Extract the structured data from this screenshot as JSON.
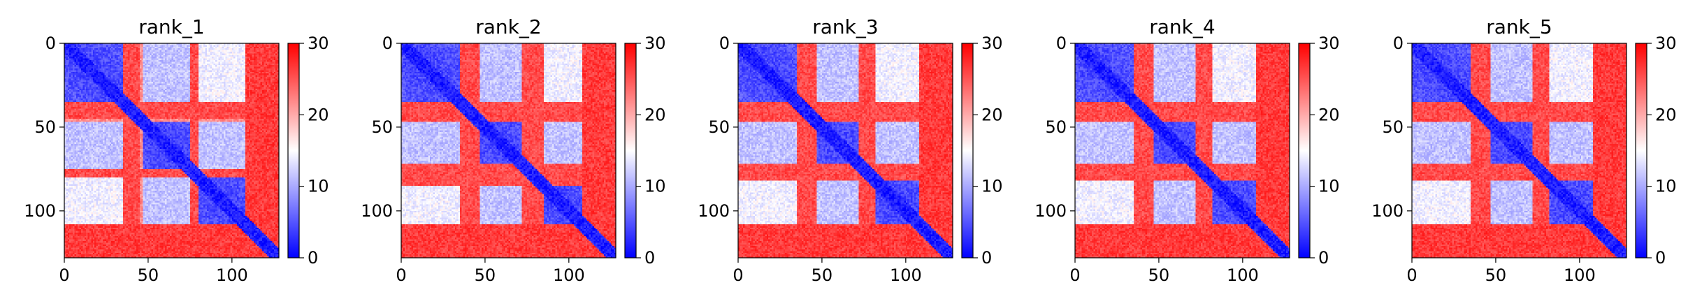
{
  "chart_data": [
    {
      "type": "heatmap",
      "title": "rank_1",
      "x_ticks": [
        0,
        50,
        100
      ],
      "y_ticks": [
        0,
        50,
        100
      ],
      "xlim": [
        0,
        128
      ],
      "ylim": [
        128,
        0
      ],
      "colorbar": {
        "ticks": [
          0,
          10,
          20,
          30
        ],
        "range": [
          0,
          30
        ],
        "colormap": "bwr"
      },
      "n_residues": 128,
      "blue_domains": [
        [
          0,
          35
        ],
        [
          45,
          75
        ],
        [
          80,
          108
        ]
      ],
      "red_bands": [
        [
          35,
          47
        ],
        [
          108,
          128
        ]
      ],
      "colors": {
        "low": "#0000ff",
        "mid": "#ffffff",
        "high": "#ff0000"
      }
    },
    {
      "type": "heatmap",
      "title": "rank_2",
      "x_ticks": [
        0,
        50,
        100
      ],
      "y_ticks": [
        0,
        50,
        100
      ],
      "xlim": [
        0,
        128
      ],
      "ylim": [
        128,
        0
      ],
      "colorbar": {
        "ticks": [
          0,
          10,
          20,
          30
        ],
        "range": [
          0,
          30
        ],
        "colormap": "bwr"
      },
      "n_residues": 128,
      "blue_domains": [
        [
          0,
          35
        ],
        [
          47,
          72
        ],
        [
          85,
          108
        ]
      ],
      "red_bands": [
        [
          35,
          47
        ],
        [
          72,
          80
        ],
        [
          108,
          128
        ]
      ],
      "colors": {
        "low": "#0000ff",
        "mid": "#ffffff",
        "high": "#ff0000"
      }
    },
    {
      "type": "heatmap",
      "title": "rank_3",
      "x_ticks": [
        0,
        50,
        100
      ],
      "y_ticks": [
        0,
        50,
        100
      ],
      "xlim": [
        0,
        128
      ],
      "ylim": [
        128,
        0
      ],
      "colorbar": {
        "ticks": [
          0,
          10,
          20,
          30
        ],
        "range": [
          0,
          30
        ],
        "colormap": "bwr"
      },
      "n_residues": 128,
      "blue_domains": [
        [
          0,
          35
        ],
        [
          47,
          72
        ],
        [
          82,
          108
        ]
      ],
      "red_bands": [
        [
          35,
          47
        ],
        [
          72,
          80
        ],
        [
          108,
          128
        ]
      ],
      "colors": {
        "low": "#0000ff",
        "mid": "#ffffff",
        "high": "#ff0000"
      }
    },
    {
      "type": "heatmap",
      "title": "rank_4",
      "x_ticks": [
        0,
        50,
        100
      ],
      "y_ticks": [
        0,
        50,
        100
      ],
      "xlim": [
        0,
        128
      ],
      "ylim": [
        128,
        0
      ],
      "colorbar": {
        "ticks": [
          0,
          10,
          20,
          30
        ],
        "range": [
          0,
          30
        ],
        "colormap": "bwr"
      },
      "n_residues": 128,
      "blue_domains": [
        [
          0,
          35
        ],
        [
          47,
          72
        ],
        [
          82,
          108
        ]
      ],
      "red_bands": [
        [
          35,
          47
        ],
        [
          72,
          80
        ],
        [
          108,
          128
        ]
      ],
      "colors": {
        "low": "#0000ff",
        "mid": "#ffffff",
        "high": "#ff0000"
      }
    },
    {
      "type": "heatmap",
      "title": "rank_5",
      "x_ticks": [
        0,
        50,
        100
      ],
      "y_ticks": [
        0,
        50,
        100
      ],
      "xlim": [
        0,
        128
      ],
      "ylim": [
        128,
        0
      ],
      "colorbar": {
        "ticks": [
          0,
          10,
          20,
          30
        ],
        "range": [
          0,
          30
        ],
        "colormap": "bwr"
      },
      "n_residues": 128,
      "blue_domains": [
        [
          0,
          35
        ],
        [
          47,
          72
        ],
        [
          82,
          108
        ]
      ],
      "red_bands": [
        [
          35,
          47
        ],
        [
          72,
          80
        ],
        [
          108,
          128
        ]
      ],
      "colors": {
        "low": "#0000ff",
        "mid": "#ffffff",
        "high": "#ff0000"
      }
    }
  ]
}
